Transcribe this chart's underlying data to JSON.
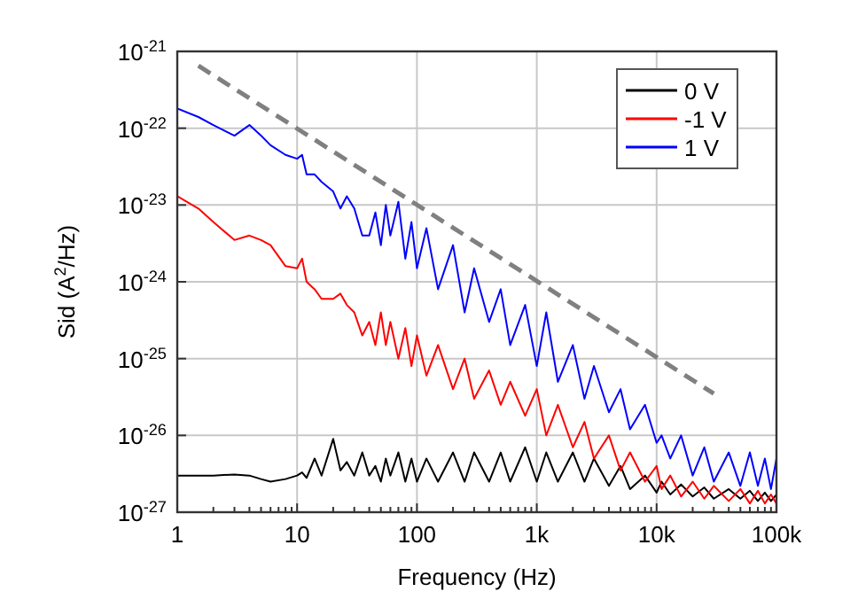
{
  "chart_data": {
    "type": "line",
    "xlabel": "Frequency (Hz)",
    "ylabel": "Sid (A$^{2}$/Hz)",
    "log": "xy",
    "grid": true,
    "legend": "top right",
    "line_style": "solid",
    "marker": "none",
    "xlim": [
      1,
      100000
    ],
    "ylim": [
      1e-27,
      1e-21
    ],
    "xticks": [
      {
        "value": 1,
        "label": "1"
      },
      {
        "value": 2,
        "label": null
      },
      {
        "value": 3,
        "label": null
      },
      {
        "value": 4,
        "label": null
      },
      {
        "value": 5,
        "label": null
      },
      {
        "value": 6,
        "label": null
      },
      {
        "value": 7,
        "label": null
      },
      {
        "value": 8,
        "label": null
      },
      {
        "value": 9,
        "label": null
      },
      {
        "value": 10,
        "label": "10"
      },
      {
        "value": 20,
        "label": null
      },
      {
        "value": 30,
        "label": null
      },
      {
        "value": 40,
        "label": null
      },
      {
        "value": 50,
        "label": null
      },
      {
        "value": 60,
        "label": null
      },
      {
        "value": 70,
        "label": null
      },
      {
        "value": 80,
        "label": null
      },
      {
        "value": 90,
        "label": null
      },
      {
        "value": 100,
        "label": "100"
      },
      {
        "value": 200,
        "label": null
      },
      {
        "value": 300,
        "label": null
      },
      {
        "value": 400,
        "label": null
      },
      {
        "value": 500,
        "label": null
      },
      {
        "value": 600,
        "label": null
      },
      {
        "value": 700,
        "label": null
      },
      {
        "value": 800,
        "label": null
      },
      {
        "value": 900,
        "label": null
      },
      {
        "value": 1000,
        "label": "1k"
      },
      {
        "value": 2000,
        "label": null
      },
      {
        "value": 3000,
        "label": null
      },
      {
        "value": 4000,
        "label": null
      },
      {
        "value": 5000,
        "label": null
      },
      {
        "value": 6000,
        "label": null
      },
      {
        "value": 7000,
        "label": null
      },
      {
        "value": 8000,
        "label": null
      },
      {
        "value": 9000,
        "label": null
      },
      {
        "value": 10000,
        "label": "10k"
      },
      {
        "value": 20000,
        "label": null
      },
      {
        "value": 30000,
        "label": null
      },
      {
        "value": 40000,
        "label": null
      },
      {
        "value": 50000,
        "label": null
      },
      {
        "value": 60000,
        "label": null
      },
      {
        "value": 70000,
        "label": null
      },
      {
        "value": 80000,
        "label": null
      },
      {
        "value": 90000,
        "label": null
      },
      {
        "value": 100000,
        "label": "100k"
      }
    ],
    "yticks": [
      {
        "value": 1e-27,
        "label": "10$^{-27}$"
      },
      {
        "value": 1e-26,
        "label": "10$^{-26}$"
      },
      {
        "value": 1e-25,
        "label": "10$^{-25}$"
      },
      {
        "value": 1e-24,
        "label": "10$^{-24}$"
      },
      {
        "value": 1e-23,
        "label": "10$^{-23}$"
      },
      {
        "value": 1e-22,
        "label": "10$^{-22}$"
      },
      {
        "value": 1e-21,
        "label": "10$^{-21}$"
      }
    ],
    "x": [
      1,
      1.5,
      2,
      3,
      4,
      5,
      6,
      8,
      10,
      11,
      12,
      14,
      16,
      20,
      23,
      26,
      30,
      35,
      40,
      45,
      50,
      55,
      60,
      70,
      80,
      90,
      100,
      120,
      150,
      200,
      250,
      300,
      400,
      500,
      600,
      800,
      1000,
      1200,
      1500,
      2000,
      2500,
      3000,
      4000,
      5000,
      6000,
      8000,
      10000,
      11000,
      13000,
      16000,
      20000,
      25000,
      30000,
      40000,
      50000,
      60000,
      70000,
      80000,
      90000,
      100000
    ],
    "series": [
      {
        "name": "0 V",
        "color": "#000000",
        "values": [
          3e-27,
          3e-27,
          3e-27,
          3.1e-27,
          3e-27,
          2.7e-27,
          2.5e-27,
          2.7e-27,
          3e-27,
          3.3e-27,
          2.8e-27,
          5e-27,
          3e-27,
          9e-27,
          3.5e-27,
          4.5e-27,
          3e-27,
          6e-27,
          3e-27,
          4e-27,
          2.5e-27,
          5e-27,
          3e-27,
          6e-27,
          2.5e-27,
          5e-27,
          2.5e-27,
          5e-27,
          2.5e-27,
          6e-27,
          2.5e-27,
          6e-27,
          2.5e-27,
          6e-27,
          2.5e-27,
          7e-27,
          2.5e-27,
          6e-27,
          2.5e-27,
          6e-27,
          2.5e-27,
          5e-27,
          2.2e-27,
          4e-27,
          2e-27,
          3e-27,
          1.8e-27,
          2.5e-27,
          1.7e-27,
          2.3e-27,
          1.6e-27,
          2.1e-27,
          1.5e-27,
          2e-27,
          1.5e-27,
          1.9e-27,
          1.4e-27,
          1.8e-27,
          1.4e-27,
          1.7e-27
        ]
      },
      {
        "name": "-1 V",
        "color": "#ff0000",
        "values": [
          1.3e-23,
          9e-24,
          6e-24,
          3.5e-24,
          4e-24,
          3.5e-24,
          3e-24,
          1.6e-24,
          1.5e-24,
          2e-24,
          1e-24,
          8e-25,
          6e-25,
          6e-25,
          7e-25,
          5e-25,
          4e-25,
          2e-25,
          3e-25,
          1.5e-25,
          4e-25,
          1.5e-25,
          3e-25,
          1e-25,
          2.5e-25,
          8e-26,
          2e-25,
          6e-26,
          1.5e-25,
          4e-26,
          1e-25,
          3e-26,
          7e-26,
          2.5e-26,
          5e-26,
          1.8e-26,
          4e-26,
          1e-26,
          2.5e-26,
          7e-27,
          1.5e-26,
          5e-27,
          1e-26,
          3.5e-27,
          6e-27,
          2.5e-27,
          4e-27,
          2e-27,
          3e-27,
          1.6e-27,
          2.5e-27,
          1.5e-27,
          2.2e-27,
          1.4e-27,
          2e-27,
          1.3e-27,
          1.9e-27,
          1.3e-27,
          1.7e-27,
          1.3e-27
        ]
      },
      {
        "name": "1 V",
        "color": "#0000ff",
        "values": [
          1.8e-22,
          1.4e-22,
          1.1e-22,
          8e-23,
          1.1e-22,
          8e-23,
          6e-23,
          4.5e-23,
          4e-23,
          4.5e-23,
          2.5e-23,
          2.5e-23,
          2e-23,
          1.5e-23,
          9e-24,
          1.3e-23,
          9e-24,
          4e-24,
          4e-24,
          8e-24,
          3e-24,
          1e-23,
          4e-24,
          1.1e-23,
          2e-24,
          6e-24,
          1.5e-24,
          5e-24,
          8e-25,
          3e-24,
          4e-25,
          1.5e-24,
          3e-25,
          8e-25,
          1.5e-25,
          5e-25,
          8e-26,
          4e-25,
          5e-26,
          1.5e-25,
          3e-26,
          8e-26,
          2e-26,
          4e-26,
          1.2e-26,
          2.5e-26,
          8e-27,
          1e-26,
          5e-27,
          1e-26,
          3e-27,
          7e-27,
          2.5e-27,
          6e-27,
          2.2e-27,
          6e-27,
          2.2e-27,
          5e-27,
          2e-27,
          5e-27
        ]
      },
      {
        "type": "line",
        "color": "#808080",
        "line_style": "dashed",
        "x": [
          1.5,
          30000
        ],
        "values": [
          6.5e-22,
          3.5e-26
        ]
      }
    ]
  }
}
